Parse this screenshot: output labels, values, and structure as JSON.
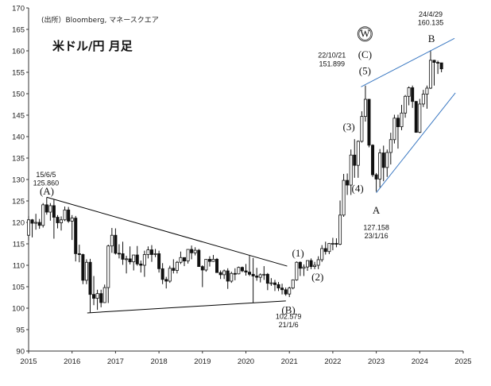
{
  "source_note": "(出所）Bloomberg, マネースクエア",
  "title": "米ドル/円 月足",
  "chart_data": {
    "type": "candlestick",
    "title": "米ドル/円 月足",
    "x_axis": {
      "min": 2015.0,
      "max": 2025.0,
      "ticks": [
        "2015",
        "2016",
        "2017",
        "2018",
        "2019",
        "2020",
        "2021",
        "2022",
        "2023",
        "2024",
        "2025"
      ]
    },
    "y_axis": {
      "min": 90,
      "max": 170,
      "ticks": [
        90,
        95,
        100,
        105,
        110,
        115,
        120,
        125,
        130,
        135,
        140,
        145,
        150,
        155,
        160,
        165,
        170
      ]
    },
    "grid": false,
    "ohlc_monthly": [
      [
        2015.0,
        117.0,
        121.5,
        115.8,
        120.6
      ],
      [
        2015.083,
        120.6,
        120.8,
        116.5,
        119.8
      ],
      [
        2015.167,
        119.8,
        122.0,
        118.3,
        120.0
      ],
      [
        2015.25,
        120.0,
        120.8,
        118.5,
        119.3
      ],
      [
        2015.333,
        119.3,
        124.5,
        118.8,
        124.1
      ],
      [
        2015.417,
        124.1,
        125.86,
        121.8,
        122.4
      ],
      [
        2015.5,
        122.4,
        124.5,
        120.4,
        123.9
      ],
      [
        2015.583,
        123.9,
        125.3,
        116.2,
        121.2
      ],
      [
        2015.667,
        121.2,
        121.7,
        118.6,
        119.9
      ],
      [
        2015.75,
        119.9,
        121.4,
        118.1,
        120.6
      ],
      [
        2015.833,
        120.6,
        123.7,
        120.3,
        122.9
      ],
      [
        2015.917,
        122.9,
        123.6,
        119.9,
        120.3
      ],
      [
        2016.0,
        120.3,
        121.7,
        115.9,
        121.0
      ],
      [
        2016.083,
        121.0,
        121.5,
        110.9,
        112.7
      ],
      [
        2016.167,
        112.7,
        114.8,
        110.7,
        112.5
      ],
      [
        2016.25,
        112.5,
        112.7,
        105.6,
        106.5
      ],
      [
        2016.333,
        106.5,
        111.4,
        105.6,
        110.7
      ],
      [
        2016.417,
        110.7,
        111.5,
        99.0,
        103.2
      ],
      [
        2016.5,
        103.2,
        107.5,
        100.7,
        102.3
      ],
      [
        2016.583,
        102.3,
        104.3,
        99.6,
        103.4
      ],
      [
        2016.667,
        103.4,
        104.3,
        100.2,
        101.3
      ],
      [
        2016.75,
        101.3,
        105.5,
        101.2,
        104.8
      ],
      [
        2016.833,
        104.8,
        114.8,
        101.2,
        114.5
      ],
      [
        2016.917,
        114.5,
        118.7,
        112.9,
        117.0
      ],
      [
        2017.0,
        117.0,
        118.6,
        112.5,
        112.8
      ],
      [
        2017.083,
        112.8,
        114.9,
        111.6,
        112.7
      ],
      [
        2017.167,
        112.7,
        115.5,
        110.1,
        111.4
      ],
      [
        2017.25,
        111.4,
        112.2,
        108.1,
        111.5
      ],
      [
        2017.333,
        111.5,
        114.4,
        110.2,
        110.8
      ],
      [
        2017.417,
        110.8,
        112.4,
        108.8,
        112.4
      ],
      [
        2017.5,
        112.4,
        114.5,
        109.9,
        110.3
      ],
      [
        2017.583,
        110.3,
        111.1,
        108.3,
        110.0
      ],
      [
        2017.667,
        110.0,
        113.4,
        107.3,
        112.5
      ],
      [
        2017.75,
        112.5,
        114.4,
        111.6,
        113.6
      ],
      [
        2017.833,
        113.6,
        114.7,
        110.8,
        112.5
      ],
      [
        2017.917,
        112.5,
        113.8,
        111.9,
        112.7
      ],
      [
        2018.0,
        112.7,
        113.4,
        108.3,
        109.2
      ],
      [
        2018.083,
        109.2,
        110.5,
        105.6,
        106.7
      ],
      [
        2018.167,
        106.7,
        107.3,
        104.6,
        106.3
      ],
      [
        2018.25,
        106.3,
        109.9,
        105.9,
        109.3
      ],
      [
        2018.333,
        109.3,
        111.4,
        108.1,
        108.8
      ],
      [
        2018.417,
        108.8,
        111.0,
        108.1,
        110.7
      ],
      [
        2018.5,
        110.7,
        113.2,
        110.3,
        111.8
      ],
      [
        2018.583,
        111.8,
        111.8,
        109.8,
        111.0
      ],
      [
        2018.667,
        111.0,
        113.7,
        110.4,
        113.7
      ],
      [
        2018.75,
        113.7,
        114.6,
        111.4,
        112.9
      ],
      [
        2018.833,
        112.9,
        114.2,
        112.3,
        113.5
      ],
      [
        2018.917,
        113.5,
        113.8,
        110.3,
        109.7
      ],
      [
        2019.0,
        109.7,
        110.0,
        104.9,
        108.9
      ],
      [
        2019.083,
        108.9,
        111.4,
        108.5,
        111.4
      ],
      [
        2019.167,
        111.4,
        112.1,
        109.7,
        110.9
      ],
      [
        2019.25,
        110.9,
        112.4,
        110.8,
        111.4
      ],
      [
        2019.333,
        111.4,
        111.7,
        108.3,
        108.3
      ],
      [
        2019.417,
        108.3,
        108.8,
        106.8,
        107.8
      ],
      [
        2019.5,
        107.8,
        109.0,
        106.8,
        108.7
      ],
      [
        2019.583,
        108.7,
        109.3,
        104.5,
        106.3
      ],
      [
        2019.667,
        106.3,
        108.5,
        105.9,
        108.1
      ],
      [
        2019.75,
        108.1,
        109.3,
        106.5,
        108.0
      ],
      [
        2019.833,
        108.0,
        109.7,
        107.9,
        109.5
      ],
      [
        2019.917,
        109.5,
        109.7,
        108.4,
        108.7
      ],
      [
        2020.0,
        108.7,
        110.3,
        107.6,
        108.4
      ],
      [
        2020.083,
        108.4,
        112.2,
        107.5,
        107.9
      ],
      [
        2020.167,
        107.9,
        111.7,
        101.2,
        107.5
      ],
      [
        2020.25,
        107.5,
        109.4,
        106.4,
        107.2
      ],
      [
        2020.333,
        107.2,
        108.1,
        106.0,
        107.8
      ],
      [
        2020.417,
        107.8,
        109.8,
        106.6,
        107.9
      ],
      [
        2020.5,
        107.9,
        108.2,
        104.2,
        105.8
      ],
      [
        2020.583,
        105.8,
        107.0,
        105.2,
        105.9
      ],
      [
        2020.667,
        105.9,
        106.6,
        104.0,
        105.5
      ],
      [
        2020.75,
        105.5,
        106.1,
        104.0,
        104.7
      ],
      [
        2020.833,
        104.7,
        105.7,
        103.2,
        104.3
      ],
      [
        2020.917,
        104.3,
        104.8,
        102.9,
        103.3
      ],
      [
        2021.0,
        103.3,
        105.0,
        102.579,
        104.7
      ],
      [
        2021.083,
        104.7,
        106.7,
        104.4,
        106.6
      ],
      [
        2021.167,
        106.6,
        110.9,
        106.4,
        110.7
      ],
      [
        2021.25,
        110.7,
        110.9,
        107.5,
        109.3
      ],
      [
        2021.333,
        109.3,
        110.2,
        107.5,
        109.6
      ],
      [
        2021.417,
        109.6,
        111.1,
        108.7,
        111.1
      ],
      [
        2021.5,
        111.1,
        111.6,
        109.1,
        109.7
      ],
      [
        2021.583,
        109.7,
        110.8,
        109.1,
        110.0
      ],
      [
        2021.667,
        110.0,
        112.1,
        109.1,
        111.3
      ],
      [
        2021.75,
        111.3,
        114.7,
        110.8,
        113.9
      ],
      [
        2021.833,
        113.9,
        115.5,
        112.5,
        113.2
      ],
      [
        2021.917,
        113.2,
        115.2,
        112.6,
        115.1
      ],
      [
        2022.0,
        115.1,
        116.4,
        113.5,
        115.1
      ],
      [
        2022.083,
        115.1,
        116.3,
        114.2,
        114.9
      ],
      [
        2022.167,
        114.9,
        125.1,
        114.7,
        121.7
      ],
      [
        2022.25,
        121.7,
        131.3,
        121.3,
        129.8
      ],
      [
        2022.333,
        129.8,
        131.4,
        126.4,
        128.7
      ],
      [
        2022.417,
        128.7,
        137.0,
        126.4,
        135.7
      ],
      [
        2022.5,
        135.7,
        139.4,
        130.4,
        133.3
      ],
      [
        2022.583,
        133.3,
        139.1,
        130.4,
        138.9
      ],
      [
        2022.667,
        138.9,
        145.9,
        138.6,
        144.7
      ],
      [
        2022.75,
        144.7,
        151.899,
        143.5,
        148.7
      ],
      [
        2022.833,
        148.7,
        148.8,
        137.5,
        138.0
      ],
      [
        2022.917,
        138.0,
        138.2,
        130.6,
        131.1
      ],
      [
        2023.0,
        131.1,
        131.5,
        127.158,
        130.1
      ],
      [
        2023.083,
        130.1,
        137.1,
        128.1,
        136.2
      ],
      [
        2023.167,
        136.2,
        137.9,
        129.6,
        132.8
      ],
      [
        2023.25,
        132.8,
        137.0,
        130.6,
        136.3
      ],
      [
        2023.333,
        136.3,
        140.9,
        133.5,
        139.3
      ],
      [
        2023.417,
        139.3,
        145.1,
        138.4,
        144.3
      ],
      [
        2023.5,
        144.3,
        145.1,
        137.2,
        142.3
      ],
      [
        2023.583,
        142.3,
        147.4,
        141.5,
        145.5
      ],
      [
        2023.667,
        145.5,
        149.7,
        144.4,
        149.4
      ],
      [
        2023.75,
        149.4,
        151.7,
        147.3,
        151.4
      ],
      [
        2023.833,
        151.4,
        151.9,
        146.7,
        148.2
      ],
      [
        2023.917,
        148.2,
        148.3,
        140.9,
        141.0
      ],
      [
        2024.0,
        141.0,
        148.8,
        140.8,
        147.6
      ],
      [
        2024.083,
        147.6,
        150.9,
        146.9,
        149.9
      ],
      [
        2024.167,
        149.9,
        151.9,
        146.5,
        151.3
      ],
      [
        2024.25,
        151.3,
        160.135,
        151.1,
        157.8
      ],
      [
        2024.333,
        157.8,
        157.9,
        151.9,
        157.3
      ],
      [
        2024.417,
        157.3,
        157.7,
        154.6,
        157.2
      ],
      [
        2024.5,
        157.2,
        157.2,
        155.0,
        155.8
      ]
    ],
    "trendlines": [
      {
        "from": [
          2015.42,
          125.86
        ],
        "to": [
          2020.95,
          109.8
        ],
        "color": "#000000"
      },
      {
        "from": [
          2016.35,
          98.9
        ],
        "to": [
          2020.92,
          101.7
        ],
        "color": "#000000"
      },
      {
        "from": [
          2022.65,
          151.6
        ],
        "to": [
          2024.8,
          162.9
        ],
        "color": "#3a78c2"
      },
      {
        "from": [
          2023.0,
          126.9
        ],
        "to": [
          2024.82,
          150.2
        ],
        "color": "#3a78c2"
      }
    ],
    "annotations": [
      {
        "text": "15/6/5",
        "x": 2015.4,
        "y": 130.6,
        "size": 9
      },
      {
        "text": "125.860",
        "x": 2015.4,
        "y": 128.6,
        "size": 9
      },
      {
        "text": "(A)",
        "x": 2015.42,
        "y": 126.5,
        "size": 12
      },
      {
        "text": "(1)",
        "x": 2021.2,
        "y": 112.0,
        "size": 12
      },
      {
        "text": "(2)",
        "x": 2021.65,
        "y": 106.5,
        "size": 12
      },
      {
        "text": "(B)",
        "x": 2020.98,
        "y": 98.8,
        "size": 12
      },
      {
        "text": "102.579",
        "x": 2020.98,
        "y": 97.5,
        "size": 9
      },
      {
        "text": "21/1/6",
        "x": 2020.98,
        "y": 95.6,
        "size": 9
      },
      {
        "text": "(3)",
        "x": 2022.37,
        "y": 141.5,
        "size": 12
      },
      {
        "text": "(4)",
        "x": 2022.57,
        "y": 127.1,
        "size": 12
      },
      {
        "text": "22/10/21",
        "x": 2021.98,
        "y": 158.4,
        "size": 9
      },
      {
        "text": "151.899",
        "x": 2021.98,
        "y": 156.4,
        "size": 9
      },
      {
        "text": "(C)",
        "x": 2022.74,
        "y": 158.3,
        "size": 12
      },
      {
        "text": "(5)",
        "x": 2022.74,
        "y": 154.5,
        "size": 12
      },
      {
        "text": "W",
        "x": 2022.74,
        "y": 163.2,
        "size": 12,
        "circled": true
      },
      {
        "text": "A",
        "x": 2023.0,
        "y": 122.0,
        "size": 12
      },
      {
        "text": "127.158",
        "x": 2023.0,
        "y": 118.2,
        "size": 9
      },
      {
        "text": "23/1/16",
        "x": 2023.0,
        "y": 116.3,
        "size": 9
      },
      {
        "text": "24/4/29",
        "x": 2024.25,
        "y": 168.0,
        "size": 9
      },
      {
        "text": "160.135",
        "x": 2024.25,
        "y": 166.0,
        "size": 9
      },
      {
        "text": "B",
        "x": 2024.27,
        "y": 162.0,
        "size": 12
      }
    ]
  }
}
